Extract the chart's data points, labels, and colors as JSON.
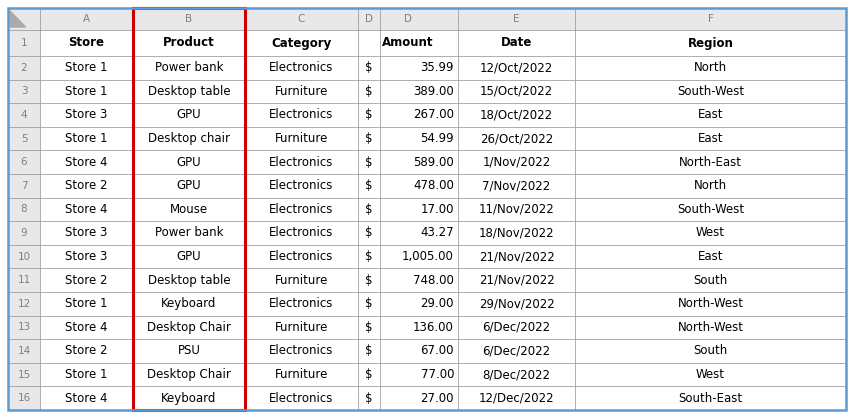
{
  "rows": [
    [
      "Store 1",
      "Power bank",
      "Electronics",
      "$",
      "35.99",
      "12/Oct/2022",
      "North"
    ],
    [
      "Store 1",
      "Desktop table",
      "Furniture",
      "$",
      "389.00",
      "15/Oct/2022",
      "South-West"
    ],
    [
      "Store 3",
      "GPU",
      "Electronics",
      "$",
      "267.00",
      "18/Oct/2022",
      "East"
    ],
    [
      "Store 1",
      "Desktop chair",
      "Furniture",
      "$",
      "54.99",
      "26/Oct/2022",
      "East"
    ],
    [
      "Store 4",
      "GPU",
      "Electronics",
      "$",
      "589.00",
      "1/Nov/2022",
      "North-East"
    ],
    [
      "Store 2",
      "GPU",
      "Electronics",
      "$",
      "478.00",
      "7/Nov/2022",
      "North"
    ],
    [
      "Store 4",
      "Mouse",
      "Electronics",
      "$",
      "17.00",
      "11/Nov/2022",
      "South-West"
    ],
    [
      "Store 3",
      "Power bank",
      "Electronics",
      "$",
      "43.27",
      "18/Nov/2022",
      "West"
    ],
    [
      "Store 3",
      "GPU",
      "Electronics",
      "$",
      "1,005.00",
      "21/Nov/2022",
      "East"
    ],
    [
      "Store 2",
      "Desktop table",
      "Furniture",
      "$",
      "748.00",
      "21/Nov/2022",
      "South"
    ],
    [
      "Store 1",
      "Keyboard",
      "Electronics",
      "$",
      "29.00",
      "29/Nov/2022",
      "North-West"
    ],
    [
      "Store 4",
      "Desktop Chair",
      "Furniture",
      "$",
      "136.00",
      "6/Dec/2022",
      "North-West"
    ],
    [
      "Store 2",
      "PSU",
      "Electronics",
      "$",
      "67.00",
      "6/Dec/2022",
      "South"
    ],
    [
      "Store 1",
      "Desktop Chair",
      "Furniture",
      "$",
      "77.00",
      "8/Dec/2022",
      "West"
    ],
    [
      "Store 4",
      "Keyboard",
      "Electronics",
      "$",
      "27.00",
      "12/Dec/2022",
      "South-East"
    ]
  ],
  "col_letters": [
    "A",
    "B",
    "C",
    "D",
    "E",
    "F"
  ],
  "col_names": [
    "Store",
    "Product",
    "Category",
    "Amount",
    "Date",
    "Region"
  ],
  "grid_color": "#a0a0a0",
  "red_border_color": "#cc0000",
  "outer_border_color": "#5b9bd5",
  "row_header_bg": "#e8e8e8",
  "col_header_bg": "#e8e8e8",
  "cell_bg": "#ffffff",
  "text_color": "#000000",
  "gray_text": "#808080",
  "font_size": 8.5,
  "header_font_size": 7.5
}
